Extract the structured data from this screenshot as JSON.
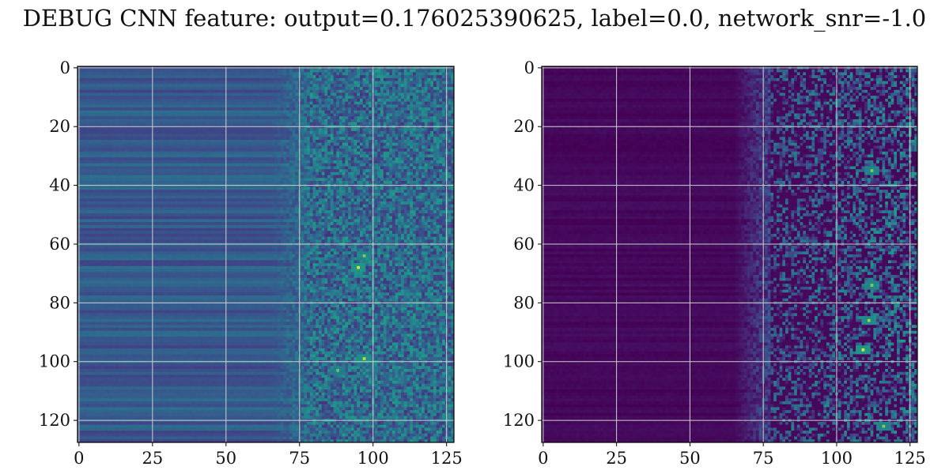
{
  "title": "DEBUG CNN feature: output=0.176025390625, label=0.0, network_snr=-1.0",
  "chart_data": [
    {
      "type": "heatmap",
      "colormap": "viridis",
      "rows": 128,
      "cols": 128,
      "xlim": [
        0,
        127
      ],
      "ylim": [
        127,
        0
      ],
      "xticks": [
        0,
        25,
        50,
        75,
        100,
        125
      ],
      "yticks": [
        0,
        20,
        40,
        60,
        80,
        100,
        120
      ],
      "grid": true,
      "description_of_values": {
        "cols_0_to_70_level": 0.28,
        "cols_75_to_127_level": 0.35,
        "noise_right": 0.18,
        "hotspots": [
          {
            "row": 68,
            "col": 95,
            "value": 0.95
          },
          {
            "row": 64,
            "col": 97,
            "value": 0.8
          },
          {
            "row": 99,
            "col": 97,
            "value": 0.9
          },
          {
            "row": 103,
            "col": 88,
            "value": 0.75
          }
        ]
      }
    },
    {
      "type": "heatmap",
      "colormap": "viridis",
      "rows": 128,
      "cols": 128,
      "xlim": [
        0,
        127
      ],
      "ylim": [
        127,
        0
      ],
      "xticks": [
        0,
        25,
        50,
        75,
        100,
        125
      ],
      "yticks": [
        0,
        20,
        40,
        60,
        80,
        100,
        120
      ],
      "grid": true,
      "description_of_values": {
        "cols_0_to_70_level": 0.02,
        "cols_75_to_127_level": 0.2,
        "noise_right": 0.2,
        "hotspots": [
          {
            "row": 96,
            "col": 109,
            "value": 0.95
          },
          {
            "row": 86,
            "col": 111,
            "value": 0.85
          },
          {
            "row": 35,
            "col": 112,
            "value": 0.8
          },
          {
            "row": 74,
            "col": 112,
            "value": 0.8
          },
          {
            "row": 122,
            "col": 116,
            "value": 0.8
          }
        ]
      }
    }
  ]
}
